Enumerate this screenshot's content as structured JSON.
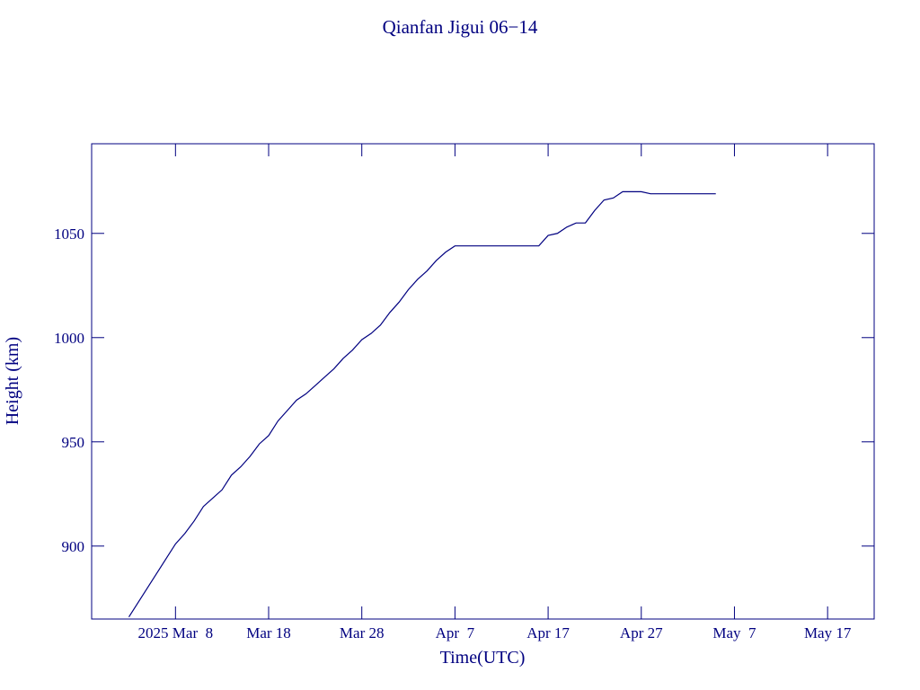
{
  "chart_data": {
    "type": "line",
    "title": "Qianfan Jigui 06−14",
    "x_label": "Time(UTC)",
    "y_label": "Height (km)",
    "x": [
      "2025-03-03",
      "2025-03-04",
      "2025-03-05",
      "2025-03-06",
      "2025-03-07",
      "2025-03-08",
      "2025-03-09",
      "2025-03-10",
      "2025-03-11",
      "2025-03-12",
      "2025-03-13",
      "2025-03-14",
      "2025-03-15",
      "2025-03-16",
      "2025-03-17",
      "2025-03-18",
      "2025-03-19",
      "2025-03-20",
      "2025-03-21",
      "2025-03-22",
      "2025-03-23",
      "2025-03-24",
      "2025-03-25",
      "2025-03-26",
      "2025-03-27",
      "2025-03-28",
      "2025-03-29",
      "2025-03-30",
      "2025-03-31",
      "2025-04-01",
      "2025-04-02",
      "2025-04-03",
      "2025-04-04",
      "2025-04-05",
      "2025-04-06",
      "2025-04-07",
      "2025-04-08",
      "2025-04-09",
      "2025-04-10",
      "2025-04-11",
      "2025-04-12",
      "2025-04-13",
      "2025-04-14",
      "2025-04-15",
      "2025-04-16",
      "2025-04-17",
      "2025-04-18",
      "2025-04-19",
      "2025-04-20",
      "2025-04-21",
      "2025-04-22",
      "2025-04-23",
      "2025-04-24",
      "2025-04-25",
      "2025-04-26",
      "2025-04-27",
      "2025-04-28",
      "2025-04-29",
      "2025-04-30",
      "2025-05-01",
      "2025-05-02",
      "2025-05-03",
      "2025-05-04",
      "2025-05-05"
    ],
    "series": [
      {
        "name": "Height",
        "color": "#000080",
        "values": [
          866,
          873,
          880,
          887,
          894,
          901,
          906,
          912,
          919,
          923,
          927,
          934,
          938,
          943,
          949,
          953,
          960,
          965,
          970,
          973,
          977,
          981,
          985,
          990,
          994,
          999,
          1002,
          1006,
          1012,
          1017,
          1023,
          1028,
          1032,
          1037,
          1041,
          1044,
          1044,
          1044,
          1044,
          1044,
          1044,
          1044,
          1044,
          1044,
          1044,
          1049,
          1050,
          1053,
          1055,
          1055,
          1061,
          1066,
          1067,
          1070,
          1070,
          1070,
          1069,
          1069,
          1069,
          1069,
          1069,
          1069,
          1069,
          1069
        ]
      }
    ],
    "xlim": [
      "2025-02-27",
      "2025-05-22"
    ],
    "xticks": [
      {
        "value": "2025-03-08",
        "label": "2025 Mar  8"
      },
      {
        "value": "2025-03-18",
        "label": "Mar 18"
      },
      {
        "value": "2025-03-28",
        "label": "Mar 28"
      },
      {
        "value": "2025-04-07",
        "label": "Apr  7"
      },
      {
        "value": "2025-04-17",
        "label": "Apr 17"
      },
      {
        "value": "2025-04-27",
        "label": "Apr 27"
      },
      {
        "value": "2025-05-07",
        "label": "May  7"
      },
      {
        "value": "2025-05-17",
        "label": "May 17"
      }
    ],
    "ylim": [
      865,
      1093
    ],
    "yticks": [
      900,
      950,
      1000,
      1050
    ]
  }
}
